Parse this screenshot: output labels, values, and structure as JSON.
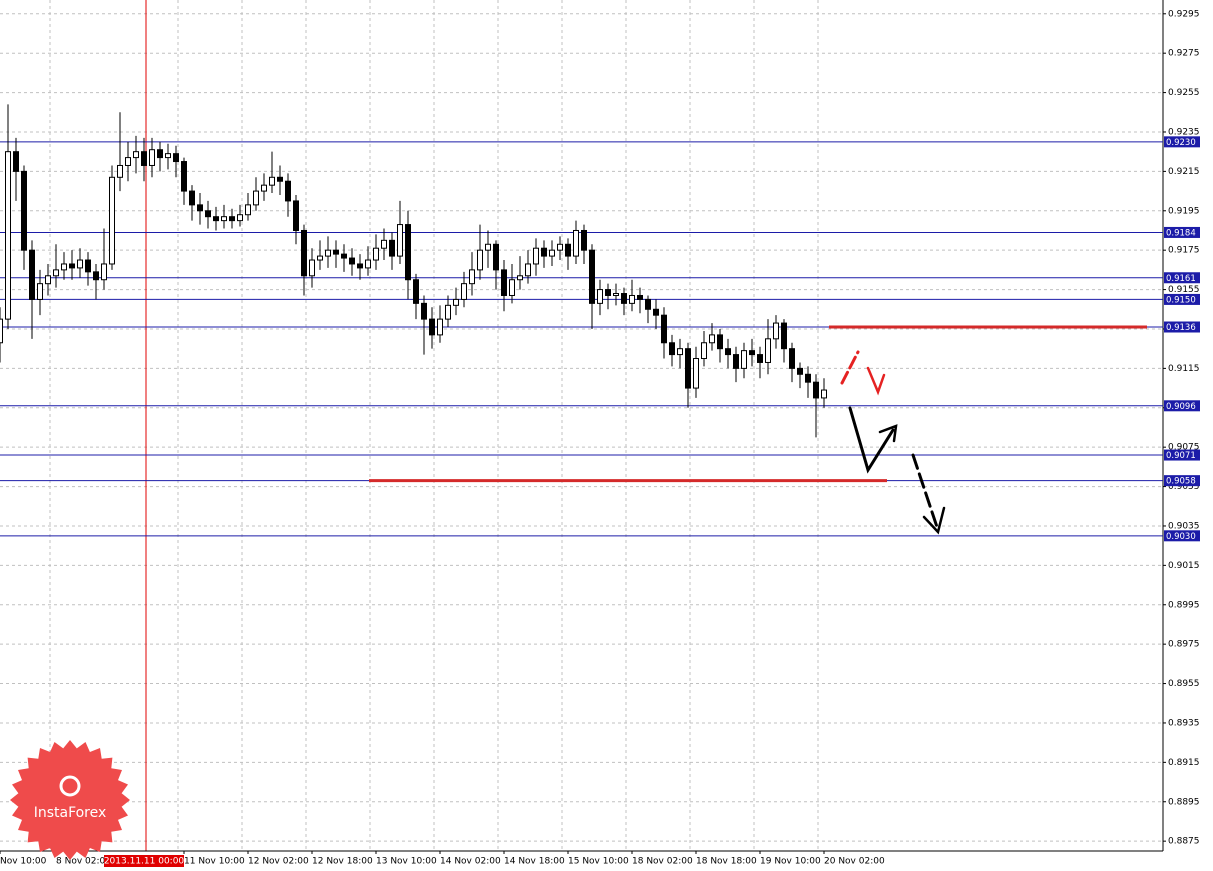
{
  "chart_data": {
    "type": "candlestick",
    "categories": [
      "Nov 10:00",
      null,
      null,
      null,
      null,
      null,
      null,
      "8 Nov 02:00",
      null,
      null,
      null,
      null,
      null,
      null,
      null,
      null,
      null,
      null,
      "2013.11.11 00:00",
      null,
      null,
      null,
      null,
      "11 Nov 10:00",
      null,
      null,
      null,
      null,
      null,
      null,
      null,
      "12 Nov 02:00",
      null,
      null,
      null,
      null,
      null,
      null,
      null,
      "12 Nov 18:00",
      null,
      null,
      null,
      null,
      null,
      null,
      null,
      "13 Nov 10:00",
      null,
      null,
      null,
      null,
      null,
      null,
      null,
      "14 Nov 02:00",
      null,
      null,
      null,
      null,
      null,
      null,
      null,
      "14 Nov 18:00",
      null,
      null,
      null,
      null,
      null,
      null,
      null,
      "15 Nov 10:00",
      null,
      null,
      null,
      null,
      null,
      null,
      null,
      "18 Nov 02:00",
      null,
      null,
      null,
      null,
      null,
      null,
      null,
      "18 Nov 18:00",
      null,
      null,
      null,
      null,
      null,
      null,
      null,
      "19 Nov 10:00",
      null,
      null,
      null,
      null,
      null,
      null,
      null,
      "20 Nov 02:00"
    ],
    "open": [
      0.9128,
      0.914,
      0.9225,
      0.9215,
      0.9175,
      0.915,
      0.9158,
      0.9162,
      0.9165,
      0.9168,
      0.9166,
      0.917,
      0.9164,
      0.916,
      0.9168,
      0.9212,
      0.9218,
      0.9222,
      0.9225,
      0.9218,
      0.9226,
      0.9222,
      0.9224,
      0.922,
      0.9205,
      0.9198,
      0.9195,
      0.9192,
      0.919,
      0.9192,
      0.919,
      0.9193,
      0.9198,
      0.9205,
      0.9208,
      0.9212,
      0.921,
      0.92,
      0.9185,
      0.9162,
      0.917,
      0.9172,
      0.9175,
      0.9173,
      0.9171,
      0.9168,
      0.9166,
      0.917,
      0.9176,
      0.918,
      0.9172,
      0.9188,
      0.916,
      0.9148,
      0.914,
      0.9132,
      0.914,
      0.9147,
      0.915,
      0.9158,
      0.9165,
      0.9175,
      0.9178,
      0.9165,
      0.9152,
      0.916,
      0.9162,
      0.9168,
      0.9176,
      0.9172,
      0.9175,
      0.9178,
      0.9172,
      0.9185,
      0.9175,
      0.9148,
      0.9155,
      0.9152,
      0.9153,
      0.9148,
      0.9152,
      0.915,
      0.9145,
      0.9142,
      0.9128,
      0.9122,
      0.9125,
      0.9105,
      0.912,
      0.9128,
      0.9132,
      0.9125,
      0.9122,
      0.9115,
      0.9124,
      0.9122,
      0.9118,
      0.913,
      0.9138,
      0.9125,
      0.9115,
      0.9112,
      0.9108,
      0.91
    ],
    "high": [
      0.9146,
      0.9249,
      0.9232,
      0.9218,
      0.918,
      0.9165,
      0.9168,
      0.9178,
      0.9174,
      0.9175,
      0.9176,
      0.9174,
      0.9168,
      0.9186,
      0.9218,
      0.9245,
      0.923,
      0.9233,
      0.9232,
      0.9232,
      0.923,
      0.9229,
      0.9228,
      0.9222,
      0.9208,
      0.9204,
      0.92,
      0.9197,
      0.9198,
      0.9196,
      0.9198,
      0.9204,
      0.9212,
      0.9214,
      0.9225,
      0.9218,
      0.9214,
      0.9203,
      0.9188,
      0.9176,
      0.918,
      0.9182,
      0.918,
      0.9178,
      0.9176,
      0.9173,
      0.9177,
      0.9183,
      0.9186,
      0.9184,
      0.92,
      0.9195,
      0.9163,
      0.9152,
      0.9146,
      0.9147,
      0.9152,
      0.9156,
      0.9164,
      0.9174,
      0.9188,
      0.9185,
      0.918,
      0.917,
      0.9168,
      0.9172,
      0.9175,
      0.9181,
      0.918,
      0.918,
      0.9182,
      0.9181,
      0.919,
      0.9188,
      0.9178,
      0.916,
      0.9158,
      0.9158,
      0.9156,
      0.916,
      0.9156,
      0.9152,
      0.915,
      0.9146,
      0.9132,
      0.913,
      0.9128,
      0.9126,
      0.9134,
      0.9138,
      0.9135,
      0.913,
      0.9126,
      0.9128,
      0.913,
      0.9126,
      0.914,
      0.9142,
      0.914,
      0.9128,
      0.9118,
      0.9116,
      0.9112,
      0.911
    ],
    "low": [
      0.9118,
      0.9135,
      0.92,
      0.9165,
      0.913,
      0.9142,
      0.9152,
      0.9156,
      0.916,
      0.916,
      0.9161,
      0.9157,
      0.915,
      0.9155,
      0.9165,
      0.9205,
      0.921,
      0.9214,
      0.921,
      0.9212,
      0.9215,
      0.9216,
      0.9212,
      0.9198,
      0.919,
      0.9188,
      0.9186,
      0.9185,
      0.9186,
      0.9186,
      0.9187,
      0.919,
      0.9195,
      0.92,
      0.9204,
      0.9203,
      0.9192,
      0.9178,
      0.9152,
      0.9156,
      0.9165,
      0.9166,
      0.9166,
      0.9164,
      0.9162,
      0.916,
      0.9162,
      0.9165,
      0.917,
      0.9165,
      0.9168,
      0.915,
      0.914,
      0.9122,
      0.9125,
      0.9128,
      0.9136,
      0.9142,
      0.9146,
      0.9152,
      0.916,
      0.9166,
      0.9155,
      0.9144,
      0.9148,
      0.9155,
      0.9158,
      0.9162,
      0.9166,
      0.9167,
      0.917,
      0.9165,
      0.9168,
      0.9168,
      0.9135,
      0.9142,
      0.9145,
      0.9147,
      0.9142,
      0.9144,
      0.9143,
      0.9138,
      0.9135,
      0.912,
      0.9116,
      0.9115,
      0.9095,
      0.91,
      0.9116,
      0.9124,
      0.9118,
      0.9115,
      0.9108,
      0.911,
      0.9116,
      0.911,
      0.9112,
      0.9125,
      0.9118,
      0.9108,
      0.9105,
      0.91,
      0.908,
      0.9095
    ],
    "close": [
      0.914,
      0.9225,
      0.9215,
      0.9175,
      0.915,
      0.9158,
      0.9162,
      0.9165,
      0.9168,
      0.9166,
      0.917,
      0.9164,
      0.916,
      0.9168,
      0.9212,
      0.9218,
      0.9222,
      0.9225,
      0.9218,
      0.9226,
      0.9222,
      0.9224,
      0.922,
      0.9205,
      0.9198,
      0.9195,
      0.9192,
      0.919,
      0.9192,
      0.919,
      0.9193,
      0.9198,
      0.9205,
      0.9208,
      0.9212,
      0.921,
      0.92,
      0.9185,
      0.9162,
      0.917,
      0.9172,
      0.9175,
      0.9173,
      0.9171,
      0.9168,
      0.9166,
      0.917,
      0.9176,
      0.918,
      0.9172,
      0.9188,
      0.916,
      0.9148,
      0.914,
      0.9132,
      0.914,
      0.9147,
      0.915,
      0.9158,
      0.9165,
      0.9175,
      0.9178,
      0.9165,
      0.9152,
      0.916,
      0.9162,
      0.9168,
      0.9176,
      0.9172,
      0.9175,
      0.9178,
      0.9172,
      0.9185,
      0.9175,
      0.9148,
      0.9155,
      0.9152,
      0.9153,
      0.9148,
      0.9152,
      0.915,
      0.9145,
      0.9142,
      0.9128,
      0.9122,
      0.9125,
      0.9105,
      0.912,
      0.9128,
      0.9132,
      0.9125,
      0.9122,
      0.9115,
      0.9124,
      0.9122,
      0.9118,
      0.913,
      0.9138,
      0.9125,
      0.9115,
      0.9112,
      0.9108,
      0.91,
      0.9104
    ],
    "ylim": [
      0.887,
      0.9302
    ],
    "yticks": [
      0.9295,
      0.9275,
      0.9255,
      0.9235,
      0.9215,
      0.9195,
      0.9175,
      0.9155,
      0.9135,
      0.9115,
      0.9095,
      0.9075,
      0.9055,
      0.9035,
      0.9015,
      0.8995,
      0.8975,
      0.8955,
      0.8935,
      0.8915,
      0.8895,
      0.8875
    ],
    "levels": [
      {
        "value": 0.923,
        "label": "0.9230"
      },
      0.9184,
      0.9161,
      {
        "value": 0.915,
        "label": "0.9150"
      },
      0.9136,
      0.9096,
      0.9071,
      0.9058,
      {
        "value": 0.903,
        "label": "0.9030"
      }
    ],
    "grid": true,
    "logo": {
      "text": "InstaForex"
    }
  }
}
